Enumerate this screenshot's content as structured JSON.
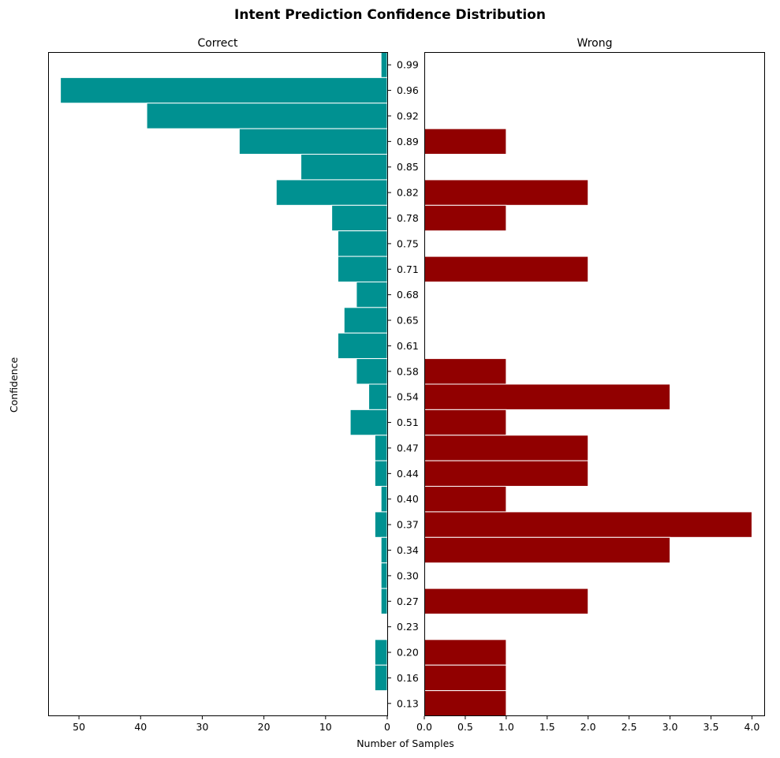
{
  "chart_data": {
    "type": "bar",
    "orientation": "horizontal",
    "title": "Intent Prediction Confidence Distribution",
    "xlabel": "Number of Samples",
    "ylabel": "Confidence",
    "colors": {
      "correct": "#009191",
      "wrong": "#910000",
      "edge": "#ffffff"
    },
    "bins": {
      "range": [
        0.11,
        1.0
      ],
      "count": 26,
      "tick_labels": [
        "0.99",
        "0.96",
        "0.92",
        "0.89",
        "0.85",
        "0.82",
        "0.78",
        "0.75",
        "0.71",
        "0.68",
        "0.65",
        "0.61",
        "0.58",
        "0.54",
        "0.51",
        "0.47",
        "0.44",
        "0.40",
        "0.37",
        "0.34",
        "0.30",
        "0.27",
        "0.23",
        "0.20",
        "0.16",
        "0.13"
      ]
    },
    "panels": [
      {
        "name": "Correct",
        "xlim": [
          55,
          0
        ],
        "x_ticks": [
          50,
          40,
          30,
          20,
          10,
          0
        ],
        "x_tick_labels": [
          "50",
          "40",
          "30",
          "20",
          "10",
          "0"
        ],
        "values": [
          1,
          53,
          39,
          24,
          14,
          18,
          9,
          8,
          8,
          5,
          7,
          8,
          5,
          3,
          6,
          2,
          2,
          1,
          2,
          1,
          1,
          1,
          0,
          2,
          2,
          0
        ]
      },
      {
        "name": "Wrong",
        "xlim": [
          0,
          4.15
        ],
        "x_ticks": [
          0,
          0.5,
          1,
          1.5,
          2,
          2.5,
          3,
          3.5,
          4
        ],
        "x_tick_labels": [
          "0.0",
          "0.5",
          "1.0",
          "1.5",
          "2.0",
          "2.5",
          "3.0",
          "3.5",
          "4.0"
        ],
        "values": [
          0,
          0,
          0,
          1,
          0,
          2,
          1,
          0,
          2,
          0,
          0,
          0,
          1,
          3,
          1,
          2,
          2,
          1,
          4,
          3,
          0,
          2,
          0,
          1,
          1,
          1
        ]
      }
    ]
  }
}
